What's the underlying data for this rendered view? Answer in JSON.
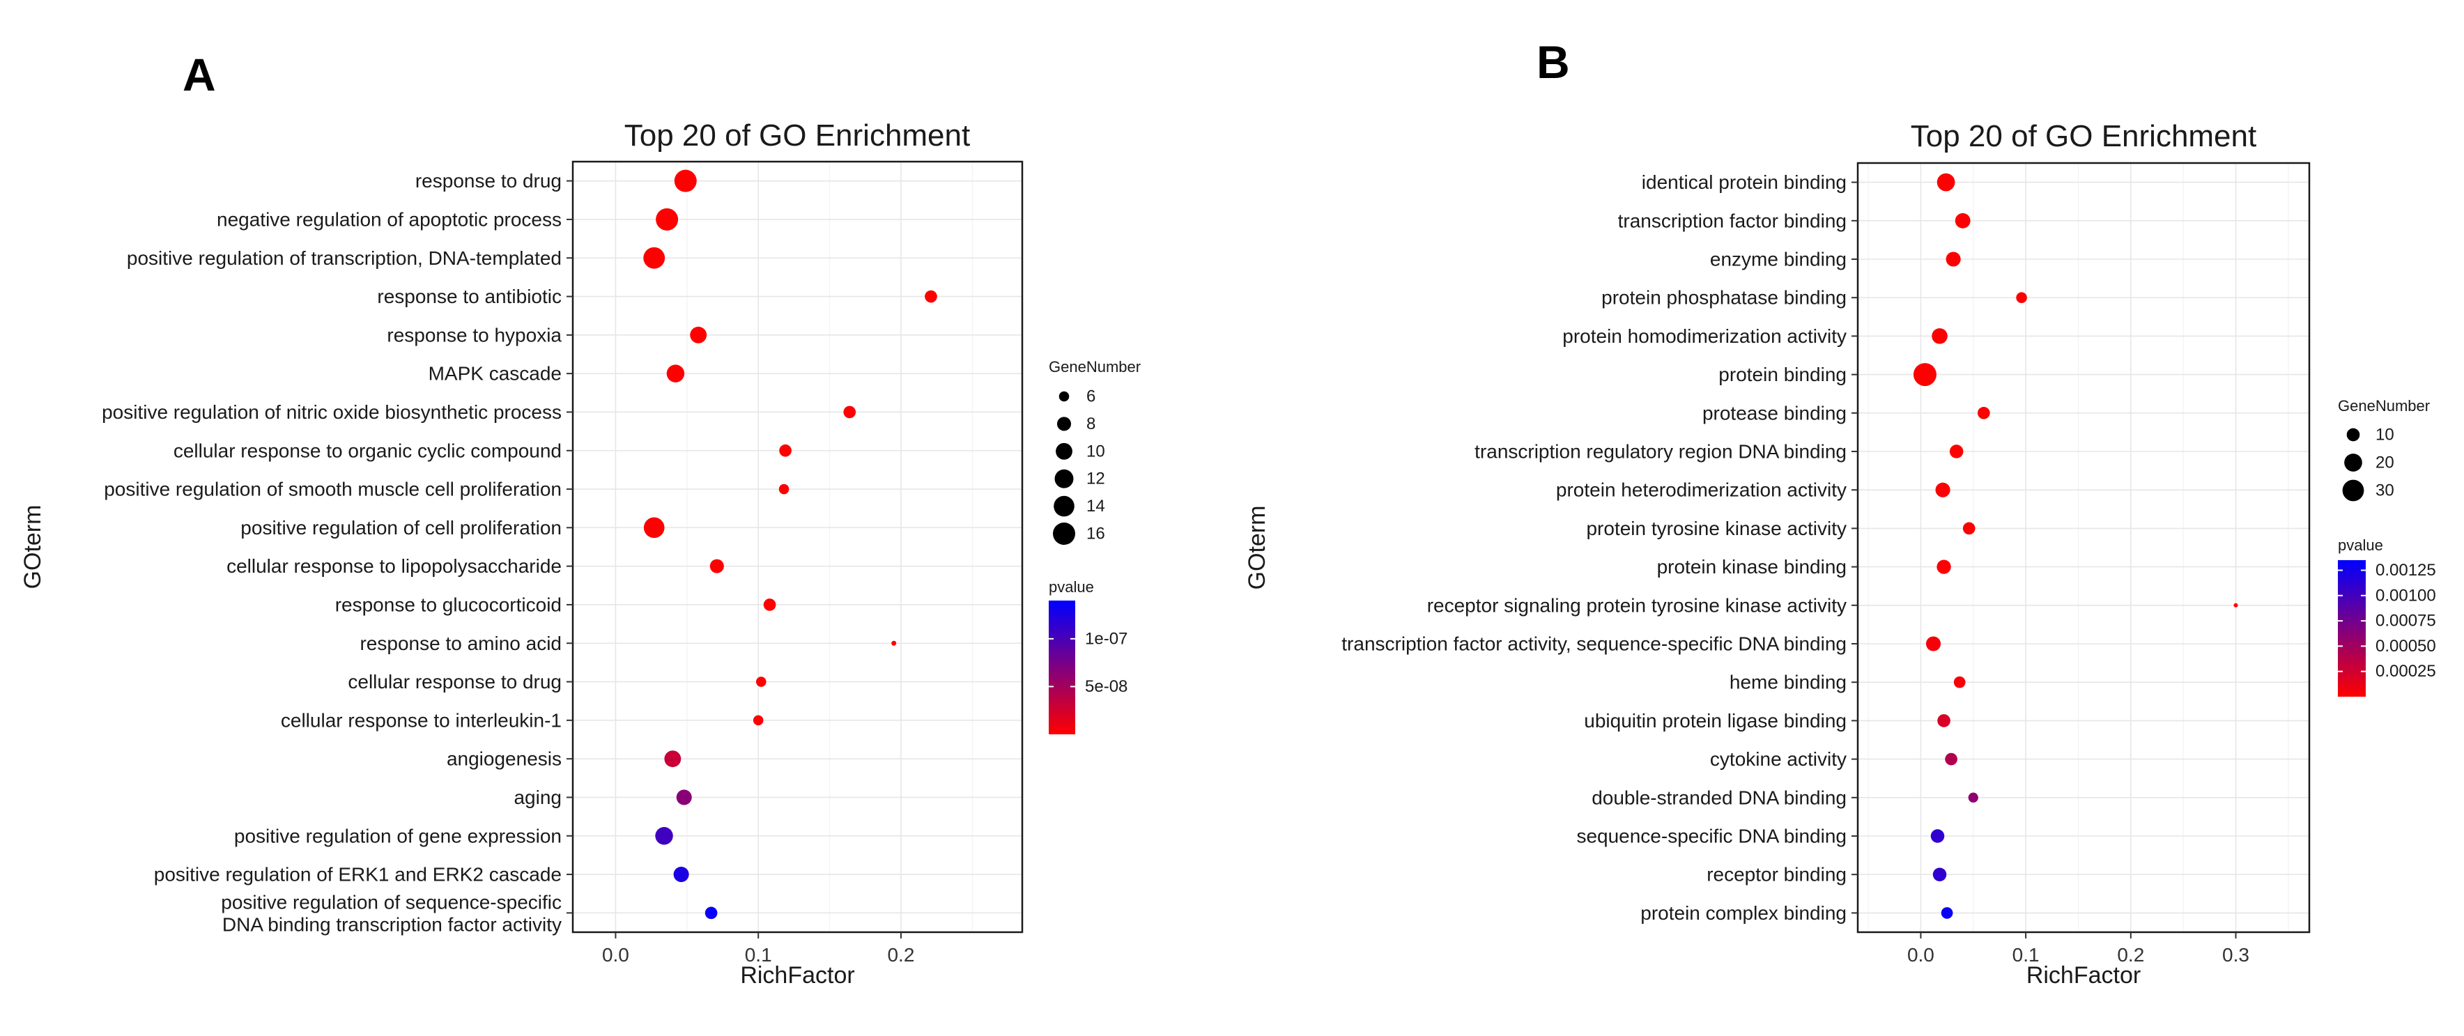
{
  "chart_data": [
    {
      "panel": "A",
      "type": "scatter",
      "title": "Top 20 of GO Enrichment",
      "xlabel": "RichFactor",
      "ylabel": "GOterm",
      "xlim": [
        -0.03,
        0.285
      ],
      "xticks": [
        0.0,
        0.1,
        0.2
      ],
      "xtick_labels": [
        "0.0",
        "0.1",
        "0.2"
      ],
      "grid": true,
      "terms": [
        "response to drug",
        "negative regulation of apoptotic process",
        "positive regulation of transcription, DNA-templated",
        "response to antibiotic",
        "response to hypoxia",
        "MAPK cascade",
        "positive regulation of nitric oxide biosynthetic process",
        "cellular response to organic cyclic compound",
        "positive regulation of smooth muscle cell proliferation",
        "positive regulation of cell proliferation",
        "cellular response to lipopolysaccharide",
        "response to glucocorticoid",
        "response to amino acid",
        "cellular response to drug",
        "cellular response to interleukin-1",
        "angiogenesis",
        "aging",
        "positive regulation of gene expression",
        "positive regulation of ERK1 and ERK2 cascade",
        "positive regulation of sequence-specific\nDNA binding transcription factor activity"
      ],
      "rich_factor": [
        0.049,
        0.036,
        0.027,
        0.221,
        0.058,
        0.042,
        0.164,
        0.119,
        0.118,
        0.027,
        0.071,
        0.108,
        0.195,
        0.102,
        0.1,
        0.04,
        0.048,
        0.034,
        0.046,
        0.067
      ],
      "gene_number": [
        16,
        16,
        15,
        7,
        10,
        11,
        7,
        7,
        6,
        14,
        8,
        7,
        5,
        6,
        6,
        10,
        9,
        11,
        9,
        7
      ],
      "pvalue": [
        1e-10,
        1e-10,
        1e-10,
        1e-10,
        1e-10,
        1e-10,
        1e-10,
        1e-10,
        1e-10,
        1e-10,
        1e-10,
        1e-10,
        1e-10,
        1e-10,
        1e-10,
        3e-08,
        6.5e-08,
        1.05e-07,
        1.25e-07,
        1.35e-07
      ],
      "legend": {
        "size_title": "GeneNumber",
        "size_breaks": [
          6,
          8,
          10,
          12,
          14,
          16
        ],
        "size_labels": [
          "6",
          "8",
          "10",
          "12",
          "14",
          "16"
        ],
        "color_title": "pvalue",
        "color_range": [
          0,
          1.4e-07
        ],
        "color_breaks": [
          1e-07,
          5e-08
        ],
        "color_labels": [
          "1e-07",
          "5e-08"
        ],
        "color_low": "#ff0000",
        "color_high": "#0000ff",
        "placement": "right"
      }
    },
    {
      "panel": "B",
      "type": "scatter",
      "title": "Top 20 of GO Enrichment",
      "xlabel": "RichFactor",
      "ylabel": "GOterm",
      "xlim": [
        -0.06,
        0.37
      ],
      "xticks": [
        0.0,
        0.1,
        0.2,
        0.3
      ],
      "xtick_labels": [
        "0.0",
        "0.1",
        "0.2",
        "0.3"
      ],
      "grid": true,
      "terms": [
        "identical protein binding",
        "transcription factor binding",
        "enzyme binding",
        "protein phosphatase binding",
        "protein homodimerization activity",
        "protein binding",
        "protease binding",
        "transcription regulatory region DNA binding",
        "protein heterodimerization activity",
        "protein tyrosine kinase activity",
        "protein kinase binding",
        "receptor signaling protein tyrosine kinase activity",
        "transcription factor activity, sequence-specific DNA binding",
        "heme binding",
        "ubiquitin protein ligase binding",
        "cytokine activity",
        "double-stranded DNA binding",
        "sequence-specific DNA binding",
        "receptor binding",
        "protein complex binding"
      ],
      "rich_factor": [
        0.024,
        0.04,
        0.031,
        0.096,
        0.018,
        0.004,
        0.06,
        0.034,
        0.021,
        0.046,
        0.022,
        0.3,
        0.012,
        0.037,
        0.022,
        0.029,
        0.05,
        0.016,
        0.018,
        0.025
      ],
      "gene_number": [
        20,
        14,
        13,
        7,
        15,
        35,
        9,
        11,
        13,
        9,
        12,
        3,
        13,
        8,
        10,
        9,
        6,
        11,
        11,
        8
      ],
      "pvalue": [
        1e-05,
        1e-05,
        1e-05,
        1e-05,
        1e-05,
        1e-05,
        1e-05,
        1e-05,
        1e-05,
        1e-05,
        1e-05,
        1e-05,
        5e-05,
        5e-05,
        0.0002,
        0.0004,
        0.0006,
        0.0011,
        0.0011,
        0.0013
      ],
      "legend": {
        "size_title": "GeneNumber",
        "size_breaks": [
          10,
          20,
          30
        ],
        "size_labels": [
          "10",
          "20",
          "30"
        ],
        "color_title": "pvalue",
        "color_range": [
          0,
          0.00135
        ],
        "color_breaks": [
          0.00125,
          0.001,
          0.00075,
          0.0005,
          0.00025
        ],
        "color_labels": [
          "0.00125",
          "0.00100",
          "0.00075",
          "0.00050",
          "0.00025"
        ],
        "color_low": "#ff0000",
        "color_high": "#0000ff",
        "placement": "right"
      }
    }
  ]
}
